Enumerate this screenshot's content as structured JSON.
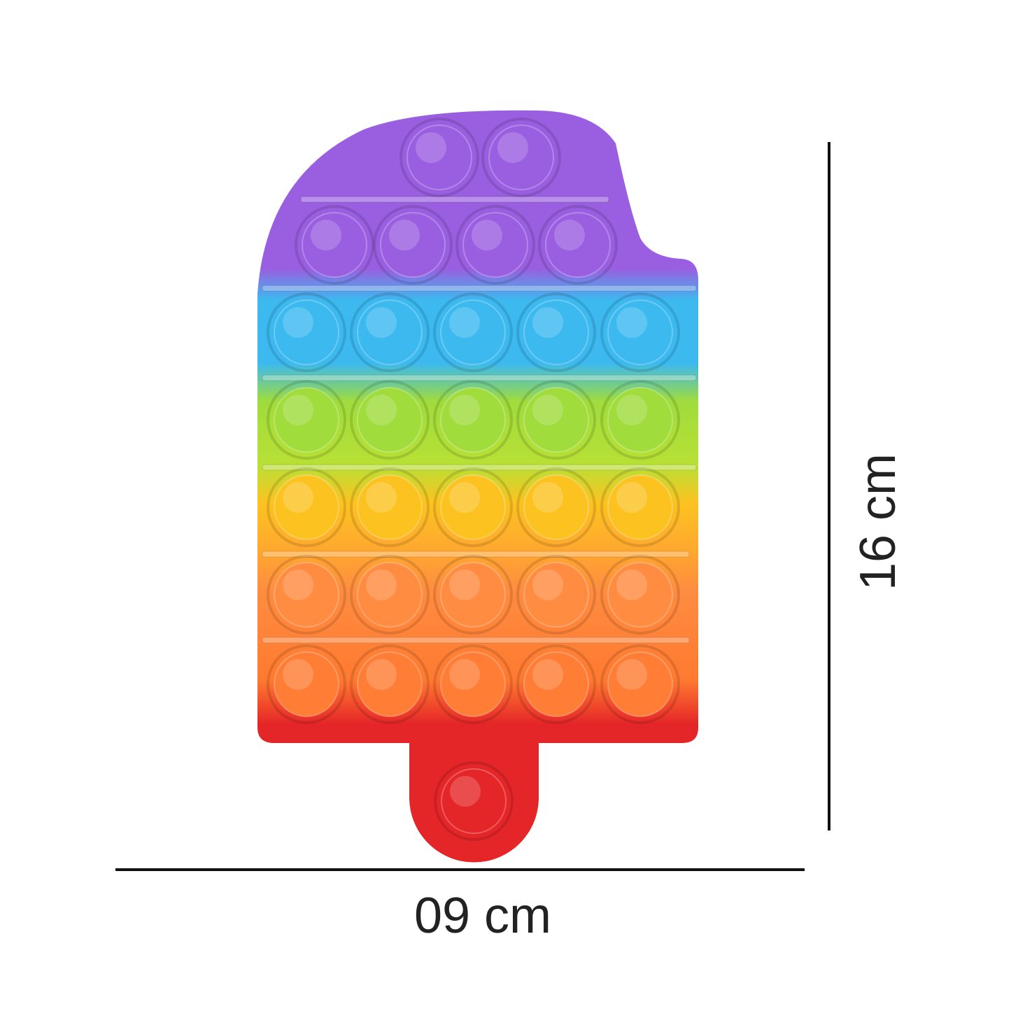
{
  "product": {
    "shape": "popsicle",
    "bubble_rows": [
      {
        "color": "purple",
        "count": 2
      },
      {
        "color": "purple",
        "count": 4
      },
      {
        "color": "blue",
        "count": 5
      },
      {
        "color": "green",
        "count": 5
      },
      {
        "color": "yellow",
        "count": 5
      },
      {
        "color": "orange",
        "count": 5
      },
      {
        "color": "orange-red",
        "count": 5
      },
      {
        "color": "red",
        "count": 1
      }
    ],
    "colors": {
      "purple": "#9a5fe0",
      "blue": "#3cb9ef",
      "green": "#a0dc3c",
      "yellow": "#fcc320",
      "orange": "#ff8c40",
      "red": "#e52628"
    }
  },
  "dimensions": {
    "width_label": "09 cm",
    "height_label": "16 cm"
  }
}
